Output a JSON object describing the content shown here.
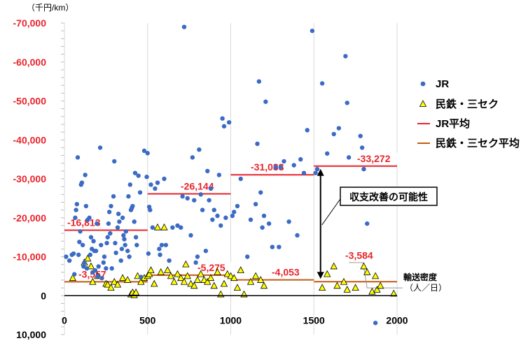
{
  "chart_data": {
    "type": "scatter",
    "y_unit_label": "（千円/km）",
    "x_unit_label": "輸送密度",
    "x_unit_label2": "（人／日）",
    "xlim": [
      0,
      2000
    ],
    "ylim": [
      10000,
      -70000
    ],
    "x_ticks": [
      0,
      500,
      1000,
      1500,
      2000
    ],
    "x_tick_labels": [
      "0",
      "500",
      "1000",
      "1500",
      "2000"
    ],
    "y_ticks": [
      -70000,
      -60000,
      -50000,
      -40000,
      -30000,
      -20000,
      -10000,
      0,
      10000
    ],
    "y_tick_labels": [
      "-70,000",
      "-60,000",
      "-50,000",
      "-40,000",
      "-30,000",
      "-20,000",
      "-10,000",
      "0",
      "10,000"
    ],
    "grid_x": true,
    "grid_y": false,
    "legend_position": "right",
    "colors": {
      "jr": "#3b6bc4",
      "private_fill": "#ffff00",
      "private_stroke": "#000000",
      "jr_avg": "#e8242b",
      "private_avg": "#c55a11",
      "negative_tick": "#e8242b",
      "grid": "#d9d9d9",
      "annotation_box": "#000000"
    },
    "legend": [
      {
        "key": "jr",
        "label": "JR",
        "marker": "dot"
      },
      {
        "key": "private",
        "label": "民鉄・三セク",
        "marker": "triangle"
      },
      {
        "key": "jr_avg",
        "label": "JR平均",
        "marker": "line"
      },
      {
        "key": "private_avg",
        "label": "民鉄・三セク平均",
        "marker": "line"
      }
    ],
    "series": [
      {
        "key": "jr",
        "name": "JR",
        "points": [
          [
            10,
            -10000
          ],
          [
            30,
            -9000
          ],
          [
            45,
            -10500
          ],
          [
            55,
            -10800
          ],
          [
            60,
            -5500
          ],
          [
            65,
            -20000
          ],
          [
            70,
            -22000
          ],
          [
            75,
            -23500
          ],
          [
            80,
            -35500
          ],
          [
            85,
            -10500
          ],
          [
            90,
            -13800
          ],
          [
            95,
            -16500
          ],
          [
            100,
            -28500
          ],
          [
            105,
            -29000
          ],
          [
            110,
            -13000
          ],
          [
            115,
            -7500
          ],
          [
            120,
            -8500
          ],
          [
            125,
            -31000
          ],
          [
            130,
            -23000
          ],
          [
            135,
            -7000
          ],
          [
            140,
            -19500
          ],
          [
            150,
            -20000
          ],
          [
            155,
            -10500
          ],
          [
            160,
            -15000
          ],
          [
            165,
            -12000
          ],
          [
            170,
            -6000
          ],
          [
            175,
            -14000
          ],
          [
            180,
            -11500
          ],
          [
            185,
            -6500
          ],
          [
            190,
            -11500
          ],
          [
            195,
            -18500
          ],
          [
            200,
            -5000
          ],
          [
            205,
            -7500
          ],
          [
            215,
            -38000
          ],
          [
            220,
            -13000
          ],
          [
            225,
            -4500
          ],
          [
            235,
            -8500
          ],
          [
            240,
            -10000
          ],
          [
            250,
            -7000
          ],
          [
            255,
            -13500
          ],
          [
            260,
            -15000
          ],
          [
            265,
            -18500
          ],
          [
            270,
            -21500
          ],
          [
            275,
            -16000
          ],
          [
            280,
            -23000
          ],
          [
            285,
            -7000
          ],
          [
            295,
            -25500
          ],
          [
            300,
            -34500
          ],
          [
            305,
            -13500
          ],
          [
            310,
            -11000
          ],
          [
            320,
            -17500
          ],
          [
            325,
            -21000
          ],
          [
            330,
            -19000
          ],
          [
            340,
            -9000
          ],
          [
            345,
            -12000
          ],
          [
            350,
            -20000
          ],
          [
            355,
            -15500
          ],
          [
            360,
            -14500
          ],
          [
            365,
            -13000
          ],
          [
            370,
            -16500
          ],
          [
            380,
            -11500
          ],
          [
            385,
            -25500
          ],
          [
            390,
            -10000
          ],
          [
            395,
            -28500
          ],
          [
            400,
            -22000
          ],
          [
            405,
            -22500
          ],
          [
            410,
            -23000
          ],
          [
            420,
            -19000
          ],
          [
            425,
            -31500
          ],
          [
            430,
            -15000
          ],
          [
            435,
            -13000
          ],
          [
            445,
            -30800
          ],
          [
            455,
            -26500
          ],
          [
            460,
            -4800
          ],
          [
            480,
            -37200
          ],
          [
            495,
            -30500
          ],
          [
            500,
            -36600
          ],
          [
            505,
            -10800
          ],
          [
            510,
            -22800
          ],
          [
            515,
            -22000
          ],
          [
            520,
            -28500
          ],
          [
            530,
            -17500
          ],
          [
            545,
            -27500
          ],
          [
            560,
            -29000
          ],
          [
            570,
            -12000
          ],
          [
            575,
            -10500
          ],
          [
            585,
            -13000
          ],
          [
            600,
            -30000
          ],
          [
            610,
            -13000
          ],
          [
            630,
            -9000
          ],
          [
            650,
            -17500
          ],
          [
            680,
            -18000
          ],
          [
            700,
            -17500
          ],
          [
            710,
            -25500
          ],
          [
            720,
            -69000
          ],
          [
            740,
            -25000
          ],
          [
            760,
            -15500
          ],
          [
            770,
            -35500
          ],
          [
            780,
            -24500
          ],
          [
            790,
            -8500
          ],
          [
            800,
            -10000
          ],
          [
            810,
            -37500
          ],
          [
            820,
            -26000
          ],
          [
            830,
            -22000
          ],
          [
            850,
            -11500
          ],
          [
            860,
            -32000
          ],
          [
            870,
            -24500
          ],
          [
            880,
            -27500
          ],
          [
            890,
            -19500
          ],
          [
            900,
            -22000
          ],
          [
            920,
            -20500
          ],
          [
            930,
            -31000
          ],
          [
            940,
            -18000
          ],
          [
            950,
            -45500
          ],
          [
            960,
            -43500
          ],
          [
            970,
            -20000
          ],
          [
            990,
            -44500
          ],
          [
            1010,
            -20500
          ],
          [
            1020,
            -21500
          ],
          [
            1040,
            -23000
          ],
          [
            1060,
            -30000
          ],
          [
            1100,
            -10000
          ],
          [
            1120,
            -19500
          ],
          [
            1150,
            -23500
          ],
          [
            1160,
            -39000
          ],
          [
            1170,
            -55000
          ],
          [
            1180,
            -26500
          ],
          [
            1190,
            -17500
          ],
          [
            1200,
            -20500
          ],
          [
            1210,
            -49800
          ],
          [
            1230,
            -18500
          ],
          [
            1250,
            -12500
          ],
          [
            1270,
            -33000
          ],
          [
            1290,
            -12500
          ],
          [
            1300,
            -33000
          ],
          [
            1320,
            -34500
          ],
          [
            1350,
            -19000
          ],
          [
            1380,
            -33500
          ],
          [
            1400,
            -15500
          ],
          [
            1420,
            -35000
          ],
          [
            1440,
            -31500
          ],
          [
            1460,
            -42500
          ],
          [
            1490,
            -68000
          ],
          [
            1510,
            -31500
          ],
          [
            1520,
            -32500
          ],
          [
            1550,
            -54500
          ],
          [
            1580,
            -36500
          ],
          [
            1620,
            -41500
          ],
          [
            1650,
            -43000
          ],
          [
            1690,
            -61500
          ],
          [
            1700,
            -49500
          ],
          [
            1710,
            -35500
          ],
          [
            1780,
            -41000
          ],
          [
            1790,
            -38000
          ],
          [
            1800,
            -32500
          ],
          [
            1820,
            -18500
          ],
          [
            1870,
            7000
          ]
        ]
      },
      {
        "key": "private",
        "name": "民鉄・三セク",
        "points": [
          [
            50,
            -4500
          ],
          [
            120,
            -8500
          ],
          [
            140,
            -9500
          ],
          [
            160,
            -7500
          ],
          [
            170,
            -3500
          ],
          [
            200,
            -5000
          ],
          [
            250,
            -3000
          ],
          [
            260,
            -2800
          ],
          [
            280,
            -2000
          ],
          [
            300,
            -3500
          ],
          [
            320,
            -2800
          ],
          [
            350,
            -4500
          ],
          [
            380,
            -4000
          ],
          [
            400,
            -300
          ],
          [
            410,
            -800
          ],
          [
            420,
            -100
          ],
          [
            430,
            -800
          ],
          [
            440,
            -5000
          ],
          [
            460,
            -3500
          ],
          [
            480,
            -4500
          ],
          [
            500,
            -5000
          ],
          [
            510,
            -5500
          ],
          [
            520,
            -6500
          ],
          [
            540,
            -3000
          ],
          [
            560,
            -17500
          ],
          [
            580,
            -6000
          ],
          [
            600,
            -17500
          ],
          [
            620,
            -6500
          ],
          [
            640,
            -5000
          ],
          [
            660,
            -3500
          ],
          [
            680,
            -5500
          ],
          [
            700,
            -4500
          ],
          [
            720,
            -3500
          ],
          [
            730,
            -8000
          ],
          [
            740,
            -5000
          ],
          [
            760,
            -3000
          ],
          [
            780,
            -2500
          ],
          [
            800,
            -4000
          ],
          [
            820,
            -5500
          ],
          [
            840,
            -4000
          ],
          [
            860,
            -3500
          ],
          [
            880,
            -4500
          ],
          [
            900,
            -2500
          ],
          [
            920,
            -6000
          ],
          [
            940,
            -300
          ],
          [
            960,
            -3000
          ],
          [
            980,
            -5500
          ],
          [
            1000,
            -5000
          ],
          [
            1020,
            -4500
          ],
          [
            1040,
            -2000
          ],
          [
            1060,
            -6500
          ],
          [
            1080,
            -300
          ],
          [
            1120,
            -3500
          ],
          [
            1150,
            -5000
          ],
          [
            1180,
            -4000
          ],
          [
            1200,
            -2500
          ],
          [
            1550,
            -2000
          ],
          [
            1580,
            -5500
          ],
          [
            1620,
            -7500
          ],
          [
            1640,
            -2500
          ],
          [
            1680,
            -3500
          ],
          [
            1700,
            -1500
          ],
          [
            1750,
            -2000
          ],
          [
            1800,
            -7500
          ],
          [
            1820,
            -6000
          ],
          [
            1850,
            -1000
          ],
          [
            1870,
            -5000
          ],
          [
            1880,
            -1500
          ],
          [
            1900,
            -2500
          ],
          [
            1980,
            -500
          ]
        ]
      }
    ],
    "averages": [
      {
        "key": "jr_avg",
        "segments": [
          {
            "x0": 0,
            "x1": 500,
            "y": -16813,
            "label": "-16,813"
          },
          {
            "x0": 500,
            "x1": 1000,
            "y": -26144,
            "label": "-26,144"
          },
          {
            "x0": 1000,
            "x1": 1500,
            "y": -31033,
            "label": "-31,033"
          },
          {
            "x0": 1500,
            "x1": 2000,
            "y": -33272,
            "label": "-33,272"
          }
        ]
      },
      {
        "key": "private_avg",
        "segments": [
          {
            "x0": 0,
            "x1": 500,
            "y": -3557,
            "label": "-3,557"
          },
          {
            "x0": 500,
            "x1": 1000,
            "y": -5275,
            "label": "-5,275"
          },
          {
            "x0": 1000,
            "x1": 1500,
            "y": -4053,
            "label": "-4,053"
          },
          {
            "x0": 1500,
            "x1": 2000,
            "y": -3584,
            "label": "-3,584"
          }
        ]
      }
    ],
    "annotation": {
      "text": "収支改善の可能性",
      "x": 1540,
      "y_top": -33272,
      "y_bottom": -3584
    }
  }
}
